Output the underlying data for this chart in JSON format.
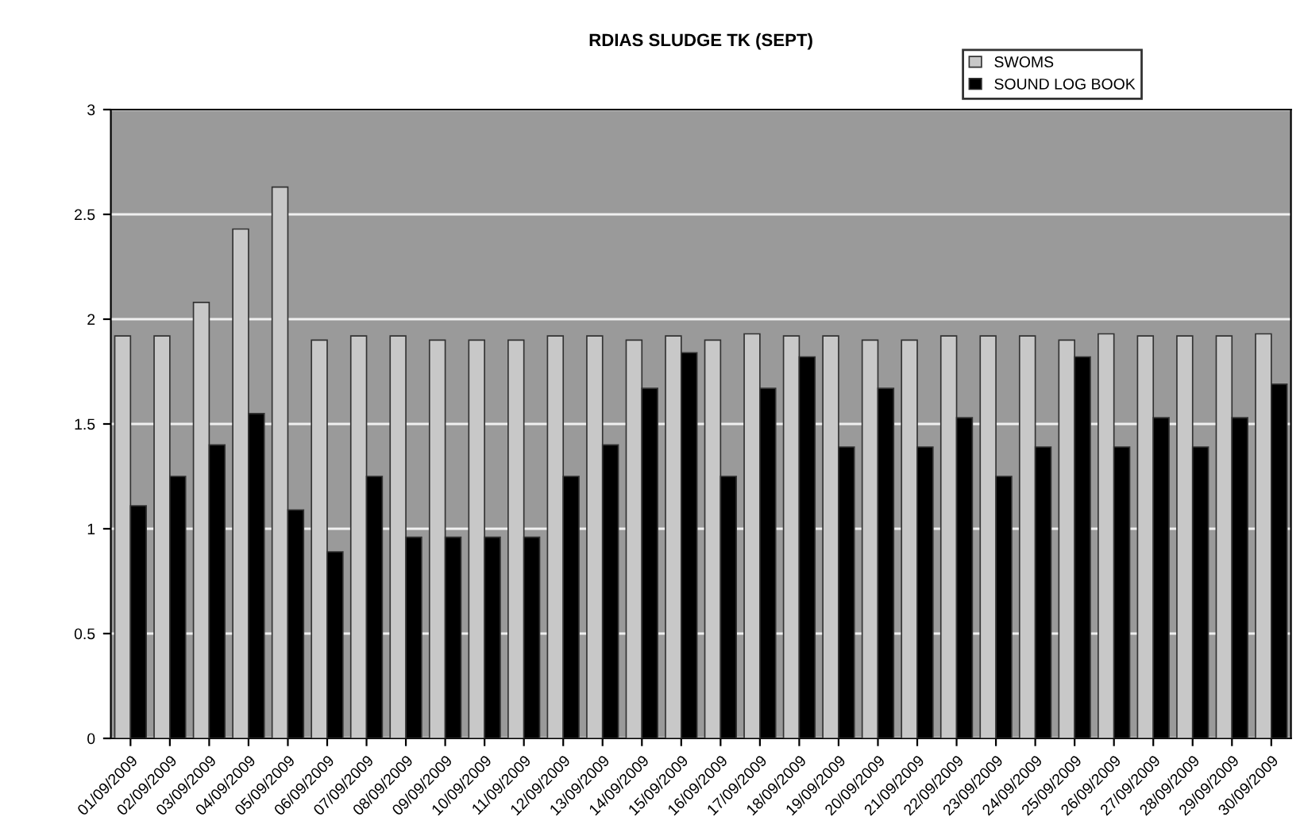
{
  "chart_data": {
    "type": "bar",
    "title": "RDIAS SLUDGE TK (SEPT)",
    "categories": [
      "01/09/2009",
      "02/09/2009",
      "03/09/2009",
      "04/09/2009",
      "05/09/2009",
      "06/09/2009",
      "07/09/2009",
      "08/09/2009",
      "09/09/2009",
      "10/09/2009",
      "11/09/2009",
      "12/09/2009",
      "13/09/2009",
      "14/09/2009",
      "15/09/2009",
      "16/09/2009",
      "17/09/2009",
      "18/09/2009",
      "19/09/2009",
      "20/09/2009",
      "21/09/2009",
      "22/09/2009",
      "23/09/2009",
      "24/09/2009",
      "25/09/2009",
      "26/09/2009",
      "27/09/2009",
      "28/09/2009",
      "29/09/2009",
      "30/09/2009"
    ],
    "series": [
      {
        "name": "SWOMS",
        "color": "#c8c8c8",
        "values": [
          1.92,
          1.92,
          2.08,
          2.43,
          2.63,
          1.9,
          1.92,
          1.92,
          1.9,
          1.9,
          1.9,
          1.92,
          1.92,
          1.9,
          1.92,
          1.9,
          1.93,
          1.92,
          1.92,
          1.9,
          1.9,
          1.92,
          1.92,
          1.92,
          1.9,
          1.93,
          1.92,
          1.92,
          1.92,
          1.93
        ]
      },
      {
        "name": "SOUND LOG BOOK",
        "color": "#000000",
        "values": [
          1.11,
          1.25,
          1.4,
          1.55,
          1.09,
          0.89,
          1.25,
          0.96,
          0.96,
          0.96,
          0.96,
          1.25,
          1.4,
          1.67,
          1.84,
          1.25,
          1.67,
          1.82,
          1.39,
          1.67,
          1.39,
          1.53,
          1.25,
          1.39,
          1.82,
          1.39,
          1.53,
          1.39,
          1.53,
          1.69
        ]
      }
    ],
    "ylim": [
      0,
      3
    ],
    "yticks": [
      0,
      0.5,
      1,
      1.5,
      2,
      2.5,
      3
    ],
    "grid": "y",
    "legend": "top right"
  }
}
